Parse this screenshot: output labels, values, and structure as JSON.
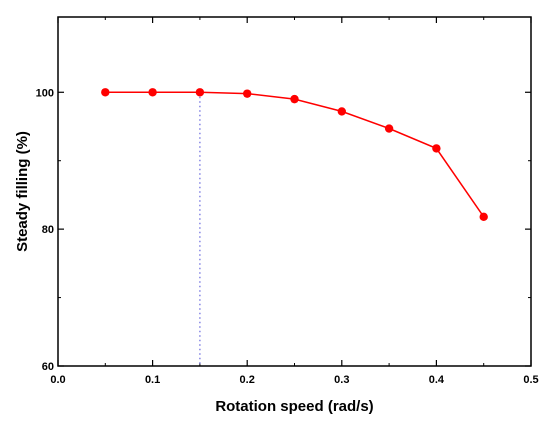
{
  "chart_data": {
    "type": "line",
    "title": "",
    "xlabel": "Rotation speed (rad/s)",
    "ylabel": "Steady filling (%)",
    "xlim": [
      0.0,
      0.5
    ],
    "ylim": [
      60,
      111
    ],
    "x_ticks": [
      "0.0",
      "0.1",
      "0.2",
      "0.3",
      "0.4",
      "0.5"
    ],
    "y_ticks": [
      "60",
      "80",
      "100"
    ],
    "grid": false,
    "legend": "none",
    "series": [
      {
        "color": "#ff0000",
        "x": [
          0.05,
          0.1,
          0.15,
          0.2,
          0.25,
          0.3,
          0.35,
          0.4,
          0.45
        ],
        "y": [
          100.0,
          100.0,
          100.0,
          99.8,
          99.0,
          97.2,
          94.7,
          91.8,
          81.8
        ]
      }
    ],
    "reference_line": {
      "x": 0.15,
      "style": "dotted",
      "color": "#6666dd"
    }
  }
}
